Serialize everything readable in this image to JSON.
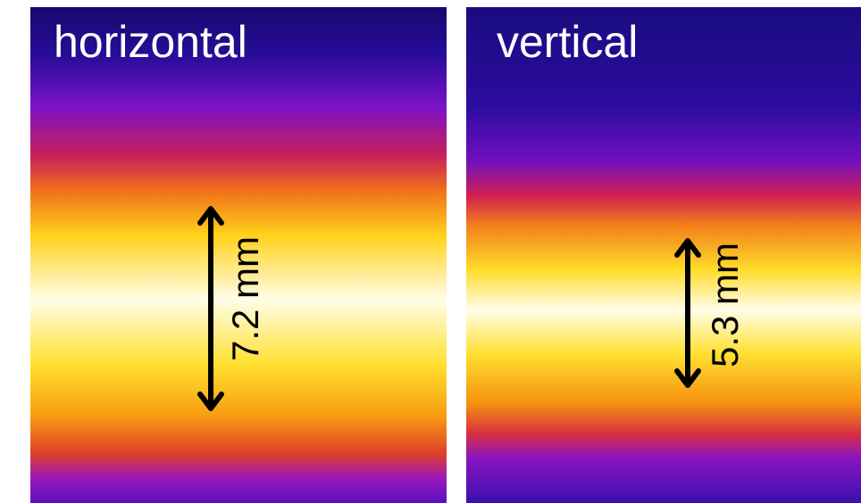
{
  "panels": [
    {
      "title": "horizontal",
      "measurement": "7.2 mm"
    },
    {
      "title": "vertical",
      "measurement": "5.3 mm"
    }
  ]
}
